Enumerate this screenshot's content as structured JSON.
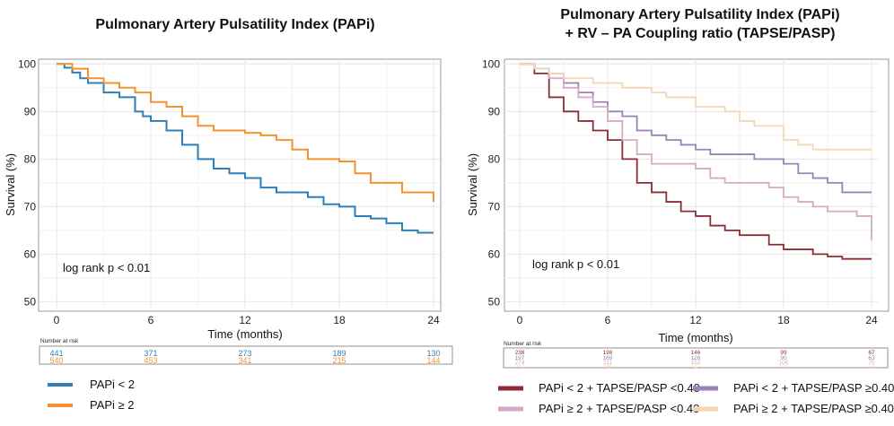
{
  "colors": {
    "papi_lt2": "#2e7fb8",
    "papi_ge2": "#f5922f",
    "lt2_tapse_lt": "#8b2e33",
    "lt2_tapse_ge": "#9a84b6",
    "ge2_tapse_lt": "#d7a9c6",
    "ge2_tapse_ge": "#f4d6b4"
  },
  "chart_data": [
    {
      "type": "line",
      "title": "Pulmonary Artery Pulsatility Index (PAPi)",
      "xlabel": "Time (months)",
      "ylabel": "Survival (%)",
      "xlim": [
        0,
        24
      ],
      "ylim": [
        48,
        101
      ],
      "xticks": [
        "0",
        "6",
        "12",
        "18",
        "24"
      ],
      "yticks": [
        "50",
        "60",
        "70",
        "80",
        "90",
        "100"
      ],
      "annotation": "log rank p < 0.01",
      "grid": true,
      "legend_position": "bottom",
      "series": [
        {
          "name": "PAPi < 2",
          "color_key": "papi_lt2",
          "x": [
            0,
            0.5,
            1,
            1.5,
            2,
            3,
            4,
            5,
            5.5,
            6,
            7,
            8,
            9,
            10,
            11,
            12,
            13,
            14,
            15,
            16,
            17,
            18,
            19,
            20,
            21,
            22,
            23,
            24
          ],
          "y": [
            100,
            99.2,
            98.2,
            97,
            96,
            94,
            93,
            90,
            89,
            88,
            86,
            83,
            80,
            78,
            77,
            76,
            74,
            73,
            73,
            72,
            70.5,
            70,
            68,
            67.5,
            66.5,
            65,
            64.5,
            64.5
          ]
        },
        {
          "name": "PAPi ≥ 2",
          "color_key": "papi_ge2",
          "x": [
            0,
            1,
            2,
            3,
            4,
            5,
            6,
            7,
            8,
            9,
            10,
            11,
            12,
            13,
            14,
            15,
            16,
            17,
            18,
            19,
            20,
            21,
            22,
            23,
            24
          ],
          "y": [
            100,
            99,
            97,
            96,
            95,
            94,
            92,
            91,
            89,
            87,
            86,
            86,
            85.5,
            85,
            84,
            82,
            80,
            80,
            79.5,
            77,
            75,
            75,
            73,
            73,
            71
          ]
        }
      ],
      "risk_table": {
        "label": "Number at risk",
        "rows": [
          {
            "color_key": "papi_lt2",
            "values": [
              "441",
              "371",
              "273",
              "189",
              "130"
            ]
          },
          {
            "color_key": "papi_ge2",
            "values": [
              "540",
              "453",
              "341",
              "215",
              "144"
            ]
          }
        ]
      },
      "legend": [
        "PAPi < 2",
        "PAPi ≥ 2"
      ]
    },
    {
      "type": "line",
      "title": "Pulmonary Artery Pulsatility Index (PAPi)",
      "subtitle": "+ RV – PA Coupling ratio (TAPSE/PASP)",
      "xlabel": "Time (months)",
      "ylabel": "Survival (%)",
      "xlim": [
        0,
        24
      ],
      "ylim": [
        48,
        101
      ],
      "xticks": [
        "0",
        "6",
        "12",
        "18",
        "24"
      ],
      "yticks": [
        "50",
        "60",
        "70",
        "80",
        "90",
        "100"
      ],
      "annotation": "log rank p < 0.01",
      "grid": true,
      "legend_position": "bottom",
      "series": [
        {
          "name": "PAPi < 2 + TAPSE/PASP <0.40",
          "color_key": "lt2_tapse_lt",
          "x": [
            0,
            1,
            2,
            3,
            4,
            5,
            6,
            7,
            8,
            9,
            10,
            11,
            12,
            13,
            14,
            15,
            16,
            17,
            18,
            19,
            20,
            21,
            22,
            23,
            24
          ],
          "y": [
            100,
            98,
            93,
            90,
            88,
            86,
            84,
            80,
            75,
            73,
            71,
            69,
            68,
            66,
            65,
            64,
            64,
            62,
            61,
            61,
            60,
            59.5,
            59,
            59,
            59
          ]
        },
        {
          "name": "PAPi < 2 + TAPSE/PASP ≥0.40",
          "color_key": "lt2_tapse_ge",
          "x": [
            0,
            1,
            2,
            3,
            4,
            5,
            6,
            7,
            8,
            9,
            10,
            11,
            12,
            13,
            14,
            15,
            16,
            17,
            18,
            19,
            20,
            21,
            22,
            23,
            24
          ],
          "y": [
            100,
            99,
            98,
            96,
            94,
            92,
            90,
            89,
            86,
            85,
            84,
            83,
            82,
            81,
            81,
            81,
            80,
            80,
            79,
            77,
            76,
            75,
            73,
            73,
            73
          ]
        },
        {
          "name": "PAPi ≥ 2 + TAPSE/PASP <0.40",
          "color_key": "ge2_tapse_lt",
          "x": [
            0,
            1,
            2,
            3,
            4,
            5,
            6,
            7,
            8,
            9,
            10,
            11,
            12,
            13,
            14,
            15,
            16,
            17,
            18,
            19,
            20,
            21,
            22,
            23,
            24
          ],
          "y": [
            100,
            99,
            97,
            95,
            93,
            91,
            88,
            84,
            81,
            79,
            79,
            79,
            78,
            76,
            75,
            75,
            75,
            74,
            72,
            71,
            70,
            69,
            69,
            68,
            63
          ]
        },
        {
          "name": "PAPi ≥ 2 + TAPSE/PASP ≥0.40",
          "color_key": "ge2_tapse_ge",
          "x": [
            0,
            1,
            2,
            3,
            4,
            5,
            6,
            7,
            8,
            9,
            10,
            11,
            12,
            13,
            14,
            15,
            16,
            17,
            18,
            19,
            20,
            21,
            22,
            23,
            24
          ],
          "y": [
            100,
            99,
            98,
            97,
            97,
            96,
            96,
            95,
            95,
            94,
            93,
            93,
            91,
            91,
            90,
            88,
            87,
            87,
            84,
            83,
            82,
            82,
            82,
            82,
            82
          ]
        }
      ],
      "risk_table": {
        "label": "Number at risk",
        "rows": [
          {
            "color_key": "lt2_tapse_lt",
            "values": [
              "238",
              "198",
              "146",
              "99",
              "67"
            ]
          },
          {
            "color_key": "lt2_tapse_ge",
            "values": [
              "197",
              "169",
              "126",
              "90",
              "63"
            ]
          },
          {
            "color_key": "ge2_tapse_lt",
            "values": [
              "274",
              "211",
              "152",
              "106",
              "70"
            ]
          },
          {
            "color_key": "ge2_tapse_ge",
            "values": [
              "217",
              "185",
              "142",
              "101",
              "73"
            ]
          }
        ]
      },
      "legend": [
        "PAPi < 2 + TAPSE/PASP <0.40",
        "PAPi ≥ 2 + TAPSE/PASP <0.40",
        "PAPi < 2 + TAPSE/PASP ≥0.40",
        "PAPi ≥ 2 + TAPSE/PASP ≥0.40"
      ]
    }
  ]
}
